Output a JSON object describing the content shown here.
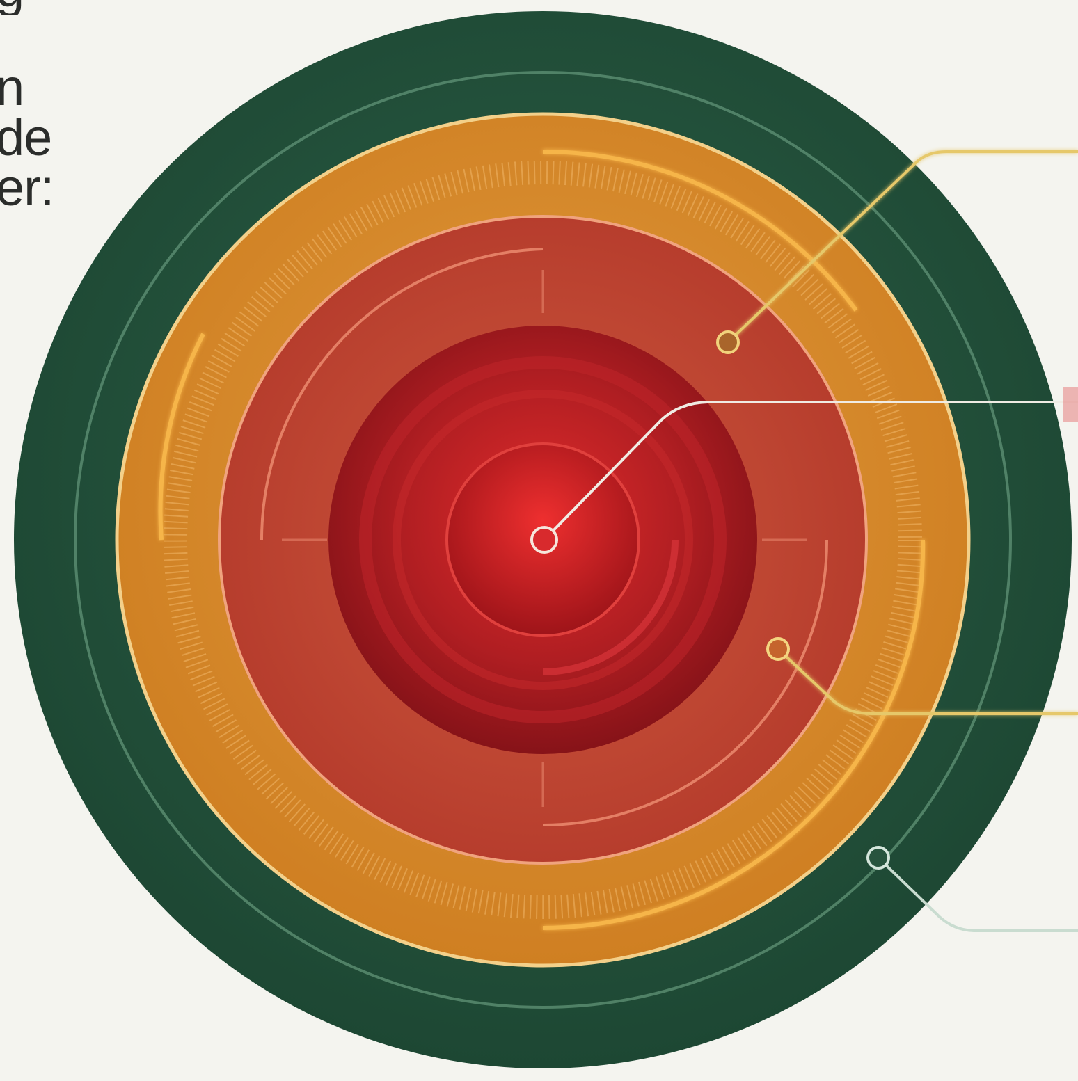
{
  "intro_text": {
    "line_0": "g",
    "line_1": "n",
    "line_2": "de",
    "line_3": "er:"
  },
  "colors": {
    "background": "#f4f4ef",
    "outer_ring": "#234f3a",
    "middle_ring": "#d98b2a",
    "inner_ring": "#c2402c",
    "core": "#a51c1f",
    "callout_gold": "#e6c86a",
    "callout_white": "#f0ece4",
    "callout_green": "#c9dcd0"
  },
  "diagram": {
    "ring_order": [
      "outer-green-ring",
      "middle-orange-ring",
      "inner-red-ring",
      "core-center"
    ],
    "callout_count": 4
  }
}
